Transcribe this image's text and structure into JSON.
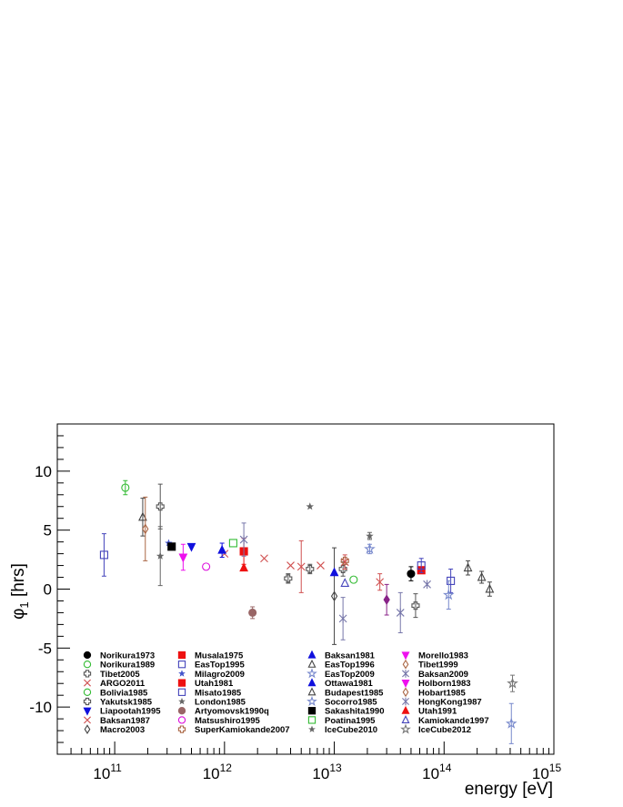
{
  "chart_data": {
    "type": "scatter",
    "xlabel": "energy [eV]",
    "ylabel": "φ",
    "ylabel_sub": "1",
    "ylabel_unit": " [hrs]",
    "x_scale": "log",
    "xlim": [
      30000000000.0,
      1000000000000000.0
    ],
    "ylim": [
      -14,
      14
    ],
    "x_ticks": [
      {
        "value": 100000000000.0,
        "base": "10",
        "exp": "11"
      },
      {
        "value": 1000000000000.0,
        "base": "10",
        "exp": "12"
      },
      {
        "value": 10000000000000.0,
        "base": "10",
        "exp": "13"
      },
      {
        "value": 100000000000000.0,
        "base": "10",
        "exp": "14"
      },
      {
        "value": 1000000000000000.0,
        "base": "10",
        "exp": "15"
      }
    ],
    "y_ticks": [
      10,
      5,
      0,
      -5,
      -10
    ],
    "y_tick_labels": [
      "10",
      "5",
      "0",
      "-5",
      "-10"
    ],
    "grid": false,
    "legend_position": "bottom",
    "series": [
      {
        "name": "Norikura1973",
        "marker": "circle",
        "filled": true,
        "color": "#000000",
        "points": [
          {
            "x": 50000000000000.0,
            "y": 1.3,
            "err": 0.6
          }
        ]
      },
      {
        "name": "Norikura1989",
        "marker": "circle",
        "filled": false,
        "color": "#33bb33",
        "points": [
          {
            "x": 125000000000.0,
            "y": 8.6,
            "err": 0.6
          }
        ]
      },
      {
        "name": "Tibet2005",
        "marker": "cross",
        "filled": false,
        "color": "#555555",
        "points": [
          {
            "x": 260000000000.0,
            "y": 7.0,
            "err": 1.9
          },
          {
            "x": 3800000000000.0,
            "y": 0.9,
            "err": 0.4
          },
          {
            "x": 12000000000000.0,
            "y": 1.7,
            "err": 0.6
          },
          {
            "x": 55000000000000.0,
            "y": -1.4,
            "err": 1.0
          }
        ]
      },
      {
        "name": "ARGO2011",
        "marker": "x",
        "filled": false,
        "color": "#d05050",
        "points": [
          {
            "x": 1000000000000.0,
            "y": 3.0,
            "err": 0
          },
          {
            "x": 2300000000000.0,
            "y": 2.6,
            "err": 0
          },
          {
            "x": 4000000000000.0,
            "y": 2.0,
            "err": 0
          },
          {
            "x": 7500000000000.0,
            "y": 2.0,
            "err": 0
          }
        ]
      },
      {
        "name": "Bolivia1985",
        "marker": "circle",
        "filled": false,
        "color": "#33bb33",
        "points": [
          {
            "x": 15000000000000.0,
            "y": 0.8,
            "err": 0
          }
        ]
      },
      {
        "name": "Yakutsk1985",
        "marker": "cross",
        "filled": false,
        "color": "#555555",
        "points": [
          {
            "x": 6000000000000.0,
            "y": 1.7,
            "err": 0.4
          }
        ]
      },
      {
        "name": "Liapootah1995",
        "marker": "triangle-down",
        "filled": true,
        "color": "#1010dd",
        "points": [
          {
            "x": 500000000000.0,
            "y": 3.6,
            "err": 0
          }
        ]
      },
      {
        "name": "Baksan1987",
        "marker": "x",
        "filled": false,
        "color": "#d05050",
        "points": [
          {
            "x": 5000000000000.0,
            "y": 1.9,
            "err": 2.2
          },
          {
            "x": 12500000000000.0,
            "y": 2.3,
            "err": 0.6
          },
          {
            "x": 26000000000000.0,
            "y": 0.6,
            "err": 0.7
          }
        ]
      },
      {
        "name": "Macro2003",
        "marker": "diamond",
        "filled": false,
        "color": "#444444",
        "points": [
          {
            "x": 10000000000000.0,
            "y": -0.6,
            "err": 4.1
          }
        ]
      },
      {
        "name": "Musala1975",
        "marker": "square",
        "filled": true,
        "color": "#ee1111",
        "points": [
          {
            "x": 1500000000000.0,
            "y": 3.2,
            "err": 1.1
          }
        ]
      },
      {
        "name": "EasTop1995",
        "marker": "square",
        "filled": false,
        "color": "#4444bb",
        "points": [
          {
            "x": 80000000000.0,
            "y": 2.9,
            "err": 1.8
          },
          {
            "x": 115000000000000.0,
            "y": 0.7,
            "err": 1.0
          }
        ]
      },
      {
        "name": "Milagro2009",
        "marker": "star-small",
        "filled": true,
        "color": "#4455cc",
        "points": [
          {
            "x": 310000000000.0,
            "y": 3.9,
            "err": 0
          }
        ]
      },
      {
        "name": "Utah1981",
        "marker": "square",
        "filled": true,
        "color": "#ee1111",
        "points": [
          {
            "x": 62000000000000.0,
            "y": 1.6,
            "err": 0
          }
        ]
      },
      {
        "name": "Misato1985",
        "marker": "square",
        "filled": false,
        "color": "#4444bb",
        "points": [
          {
            "x": 62000000000000.0,
            "y": 2.0,
            "err": 0.6
          }
        ]
      },
      {
        "name": "London1985",
        "marker": "star-small",
        "filled": true,
        "color": "#666666",
        "points": [
          {
            "x": 260000000000.0,
            "y": 2.8,
            "err": 2.5
          },
          {
            "x": 21000000000000.0,
            "y": 4.5,
            "err": 0.3
          }
        ]
      },
      {
        "name": "Artyomovsk1990q",
        "marker": "circle",
        "filled": true,
        "color": "#996666",
        "points": [
          {
            "x": 1800000000000.0,
            "y": -2.0,
            "err": 0.5
          }
        ]
      },
      {
        "name": "Matsushiro1995",
        "marker": "circle",
        "filled": false,
        "color": "#dd11dd",
        "points": [
          {
            "x": 680000000000.0,
            "y": 1.9,
            "err": 0
          }
        ]
      },
      {
        "name": "SuperKamiokande2007",
        "marker": "cross",
        "filled": false,
        "color": "#aa6644",
        "points": [
          {
            "x": 12500000000000.0,
            "y": 2.4,
            "err": 0
          }
        ]
      },
      {
        "name": "Baksan1981",
        "marker": "triangle-up",
        "filled": true,
        "color": "#1010dd",
        "points": [
          {
            "x": 950000000000.0,
            "y": 3.3,
            "err": 0.6
          },
          {
            "x": 10000000000000.0,
            "y": 1.4,
            "err": 0
          }
        ]
      },
      {
        "name": "EasTop1996",
        "marker": "triangle-up",
        "filled": false,
        "color": "#444444",
        "points": [
          {
            "x": 180000000000.0,
            "y": 6.1,
            "err": 1.6
          }
        ]
      },
      {
        "name": "EasTop2009",
        "marker": "star",
        "filled": false,
        "color": "#7788cc",
        "points": [
          {
            "x": 110000000000000.0,
            "y": -0.5,
            "err": 1.2
          }
        ]
      },
      {
        "name": "Ottawa1981",
        "marker": "triangle-up",
        "filled": true,
        "color": "#1010dd",
        "points": []
      },
      {
        "name": "Budapest1985",
        "marker": "triangle-up",
        "filled": false,
        "color": "#444444",
        "points": [
          {
            "x": 165000000000000.0,
            "y": 1.8,
            "err": 0.6
          },
          {
            "x": 220000000000000.0,
            "y": 1.0,
            "err": 0.5
          },
          {
            "x": 260000000000000.0,
            "y": 0.0,
            "err": 0.6
          }
        ]
      },
      {
        "name": "Socorro1985",
        "marker": "star",
        "filled": false,
        "color": "#7788cc",
        "points": [
          {
            "x": 21000000000000.0,
            "y": 3.4,
            "err": 0.4
          },
          {
            "x": 410000000000000.0,
            "y": -11.4,
            "err": 1.7
          }
        ]
      },
      {
        "name": "Sakashita1990",
        "marker": "square",
        "filled": true,
        "color": "#000000",
        "points": [
          {
            "x": 330000000000.0,
            "y": 3.6,
            "err": 0
          }
        ]
      },
      {
        "name": "Poatina1995",
        "marker": "square",
        "filled": false,
        "color": "#33bb33",
        "points": [
          {
            "x": 1200000000000.0,
            "y": 3.9,
            "err": 0
          }
        ]
      },
      {
        "name": "IceCube2010",
        "marker": "star-small",
        "filled": true,
        "color": "#666666",
        "points": [
          {
            "x": 6000000000000.0,
            "y": 7.0,
            "err": 0
          }
        ]
      },
      {
        "name": "Morello1983",
        "marker": "triangle-down",
        "filled": true,
        "color": "#ee11ee",
        "points": [
          {
            "x": 420000000000.0,
            "y": 2.7,
            "err": 1.1
          }
        ]
      },
      {
        "name": "Tibet1999",
        "marker": "diamond",
        "filled": false,
        "color": "#aa6644",
        "points": [
          {
            "x": 190000000000.0,
            "y": 5.1,
            "err": 2.7
          }
        ]
      },
      {
        "name": "Baksan2009",
        "marker": "asterisk",
        "filled": false,
        "color": "#7777aa",
        "points": [
          {
            "x": 1500000000000.0,
            "y": 4.2,
            "err": 1.4
          },
          {
            "x": 12000000000000.0,
            "y": -2.5,
            "err": 1.8
          },
          {
            "x": 40000000000000.0,
            "y": -2.0,
            "err": 1.7
          }
        ]
      },
      {
        "name": "Holborn1983",
        "marker": "triangle-down",
        "filled": true,
        "color": "#ee11ee",
        "points": []
      },
      {
        "name": "Hobart1985",
        "marker": "diamond",
        "filled": false,
        "color": "#aa6644",
        "points": []
      },
      {
        "name": "HongKong1987",
        "marker": "asterisk",
        "filled": false,
        "color": "#7777aa",
        "points": [
          {
            "x": 70000000000000.0,
            "y": 0.4,
            "err": 0
          }
        ]
      },
      {
        "name": "Utah1991",
        "marker": "triangle-up",
        "filled": true,
        "color": "#ee1111",
        "points": [
          {
            "x": 1500000000000.0,
            "y": 1.8,
            "err": 0
          }
        ]
      },
      {
        "name": "Kamiokande1997",
        "marker": "triangle-up",
        "filled": false,
        "color": "#4444bb",
        "points": [
          {
            "x": 12500000000000.0,
            "y": 0.5,
            "err": 0
          }
        ]
      },
      {
        "name": "IceCube2012",
        "marker": "star",
        "filled": false,
        "color": "#777777",
        "points": [
          {
            "x": 420000000000000.0,
            "y": -8.0,
            "err": 0.7
          }
        ]
      },
      {
        "name": "purple-diamond",
        "legend": false,
        "marker": "diamond",
        "filled": true,
        "color": "#882288",
        "points": [
          {
            "x": 30000000000000.0,
            "y": -0.9,
            "err": 1.3
          }
        ]
      }
    ],
    "legend_columns": [
      [
        "Norikura1973",
        "Norikura1989",
        "Tibet2005",
        "ARGO2011",
        "Bolivia1985",
        "Yakutsk1985",
        "Liapootah1995",
        "Baksan1987",
        "Macro2003"
      ],
      [
        "Musala1975",
        "EasTop1995",
        "Milagro2009",
        "Utah1981",
        "Misato1985",
        "London1985",
        "Artyomovsk1990q",
        "Matsushiro1995",
        "SuperKamiokande2007"
      ],
      [
        "Baksan1981",
        "EasTop1996",
        "EasTop2009",
        "Ottawa1981",
        "Budapest1985",
        "Socorro1985",
        "Sakashita1990",
        "Poatina1995",
        "IceCube2010"
      ],
      [
        "Morello1983",
        "Tibet1999",
        "Baksan2009",
        "Holborn1983",
        "Hobart1985",
        "HongKong1987",
        "Utah1991",
        "Kamiokande1997",
        "IceCube2012"
      ]
    ]
  }
}
